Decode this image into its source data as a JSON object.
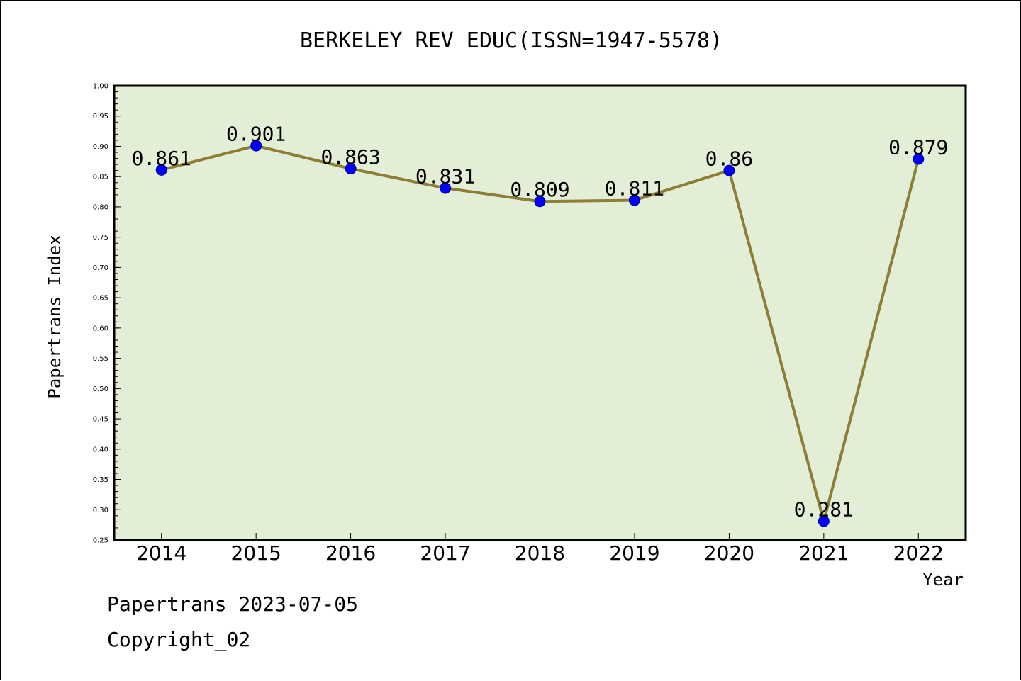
{
  "chart_data": {
    "type": "line",
    "title": "BERKELEY REV EDUC(ISSN=1947-5578)",
    "xlabel": "Year",
    "ylabel": "Papertrans Index",
    "categories": [
      "2014",
      "2015",
      "2016",
      "2017",
      "2018",
      "2019",
      "2020",
      "2021",
      "2022"
    ],
    "values": [
      0.861,
      0.901,
      0.863,
      0.831,
      0.809,
      0.811,
      0.86,
      0.281,
      0.879
    ],
    "data_labels": [
      "0.861",
      "0.901",
      "0.863",
      "0.831",
      "0.809",
      "0.811",
      "0.86",
      "0.281",
      "0.879"
    ],
    "ylim": [
      0.25,
      1.0
    ],
    "yticks": [
      "0.25",
      "0.30",
      "0.35",
      "0.40",
      "0.45",
      "0.50",
      "0.55",
      "0.60",
      "0.65",
      "0.70",
      "0.75",
      "0.80",
      "0.85",
      "0.90",
      "0.95",
      "1.00"
    ],
    "grid": false,
    "colors": {
      "plot_background": "#e2efd6",
      "line": "#8c7e35",
      "marker": "#0000ff"
    }
  },
  "footer": {
    "line1": "Papertrans 2023-07-05",
    "line2": "Copyright_02"
  }
}
